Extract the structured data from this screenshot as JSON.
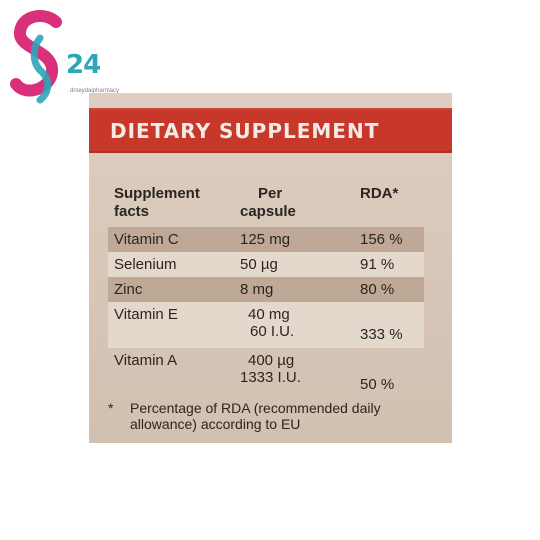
{
  "logo": {
    "number": "24",
    "url": "drseydaipharmacy",
    "colors": {
      "pink": "#d8307a",
      "teal": "#2ca6b8"
    }
  },
  "banner": {
    "title": "DIETARY SUPPLEMENT",
    "color": "#c8382a"
  },
  "table": {
    "headers": {
      "col1_line1": "Supplement",
      "col1_line2": "facts",
      "col2_line1": "Per",
      "col2_line2": "capsule",
      "col3": "RDA*"
    },
    "rows": [
      {
        "name": "Vitamin C",
        "amount": "125 mg",
        "amount2": "",
        "rda": "156 %"
      },
      {
        "name": "Selenium",
        "amount": "50 µg",
        "amount2": "",
        "rda": "91 %"
      },
      {
        "name": "Zinc",
        "amount": "8 mg",
        "amount2": "",
        "rda": "80 %"
      },
      {
        "name": "Vitamin E",
        "amount": "40 mg",
        "amount2": "60 I.U.",
        "rda": "333 %"
      },
      {
        "name": "Vitamin A",
        "amount": "400 µg",
        "amount2": "1333 I.U.",
        "rda": "50 %"
      }
    ]
  },
  "footnote": {
    "marker": "*",
    "text": "Percentage of RDA (recommended daily allowance) according to EU"
  }
}
